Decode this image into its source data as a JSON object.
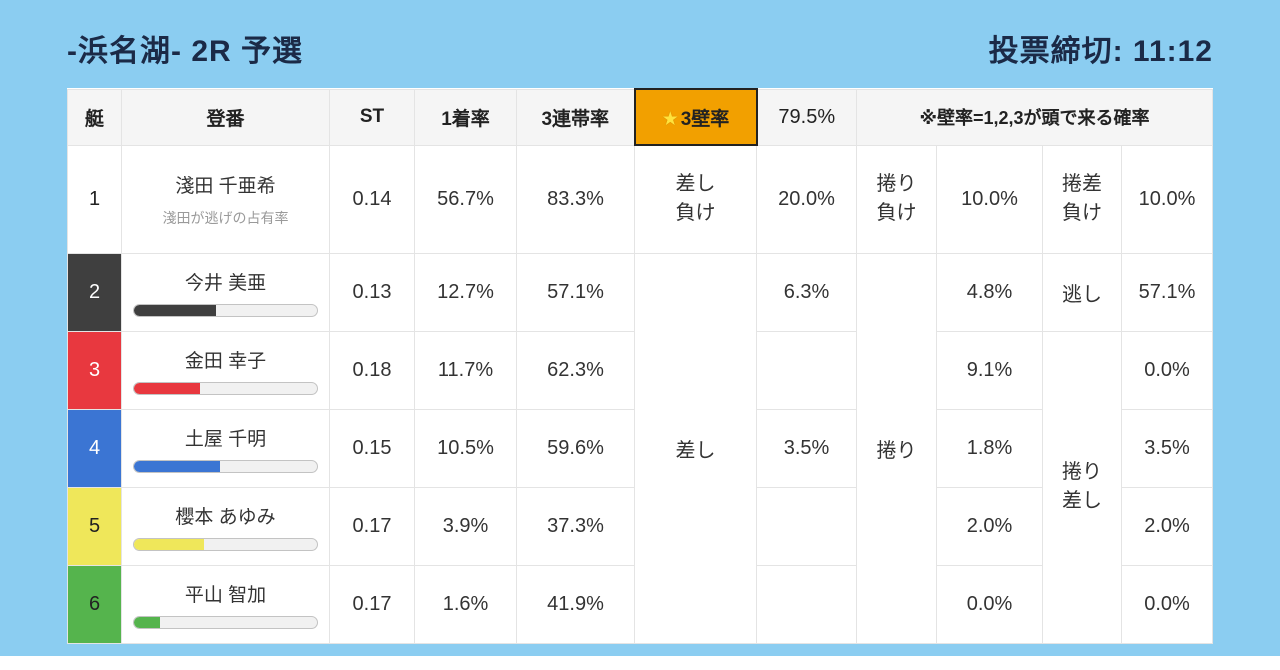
{
  "header": {
    "title": "-浜名湖- 2R 予選",
    "deadline": "投票締切: 11:12"
  },
  "colors": {
    "background": "#8bcdf1",
    "title_text": "#1b2a47",
    "wall_highlight": "#f2a000",
    "boats": [
      {
        "bg": "#ffffff",
        "fg": "#222222"
      },
      {
        "bg": "#3f3f3f",
        "fg": "#ffffff"
      },
      {
        "bg": "#e8383f",
        "fg": "#ffffff"
      },
      {
        "bg": "#3b75d3",
        "fg": "#ffffff"
      },
      {
        "bg": "#efe75a",
        "fg": "#222222"
      },
      {
        "bg": "#55b44d",
        "fg": "#222222"
      }
    ]
  },
  "table": {
    "headers": {
      "boat": "艇",
      "entry": "登番",
      "st": "ST",
      "win_rate": "1着率",
      "top3_rate": "3連帯率",
      "wall_star": "★",
      "wall_label": "3壁率",
      "wall_value": "79.5%",
      "note": "※壁率=1,2,3が頭で来る確率"
    },
    "merged": {
      "sashi": "差し",
      "makuri": "捲り",
      "makuri_sashi": "捲り差し"
    },
    "rows": [
      {
        "boat": "1",
        "name": "淺田 千亜希",
        "sub": "淺田が逃げの占有率",
        "st": "0.14",
        "win_rate": "56.7%",
        "top3_rate": "83.3%",
        "col1_label": "差し負け",
        "col1_value": "20.0%",
        "col2_label": "捲り負け",
        "col2_value": "10.0%",
        "col3_label": "捲差負け",
        "col3_value": "10.0%"
      },
      {
        "boat": "2",
        "name": "今井 美亜",
        "bar_pct": 45,
        "st": "0.13",
        "win_rate": "12.7%",
        "top3_rate": "57.1%",
        "col1_value": "6.3%",
        "col2_value": "4.8%",
        "col3_label": "逃し",
        "col3_value": "57.1%"
      },
      {
        "boat": "3",
        "name": "金田 幸子",
        "bar_pct": 36,
        "st": "0.18",
        "win_rate": "11.7%",
        "top3_rate": "62.3%",
        "col1_value": "",
        "col2_value": "9.1%",
        "col3_value": "0.0%"
      },
      {
        "boat": "4",
        "name": "土屋 千明",
        "bar_pct": 47,
        "st": "0.15",
        "win_rate": "10.5%",
        "top3_rate": "59.6%",
        "col1_value": "3.5%",
        "col2_value": "1.8%",
        "col3_value": "3.5%"
      },
      {
        "boat": "5",
        "name": "櫻本 あゆみ",
        "bar_pct": 38,
        "st": "0.17",
        "win_rate": "3.9%",
        "top3_rate": "37.3%",
        "col1_value": "",
        "col2_value": "2.0%",
        "col3_value": "2.0%"
      },
      {
        "boat": "6",
        "name": "平山 智加",
        "bar_pct": 14,
        "st": "0.17",
        "win_rate": "1.6%",
        "top3_rate": "41.9%",
        "col1_value": "",
        "col2_value": "0.0%",
        "col3_value": "0.0%"
      }
    ]
  }
}
